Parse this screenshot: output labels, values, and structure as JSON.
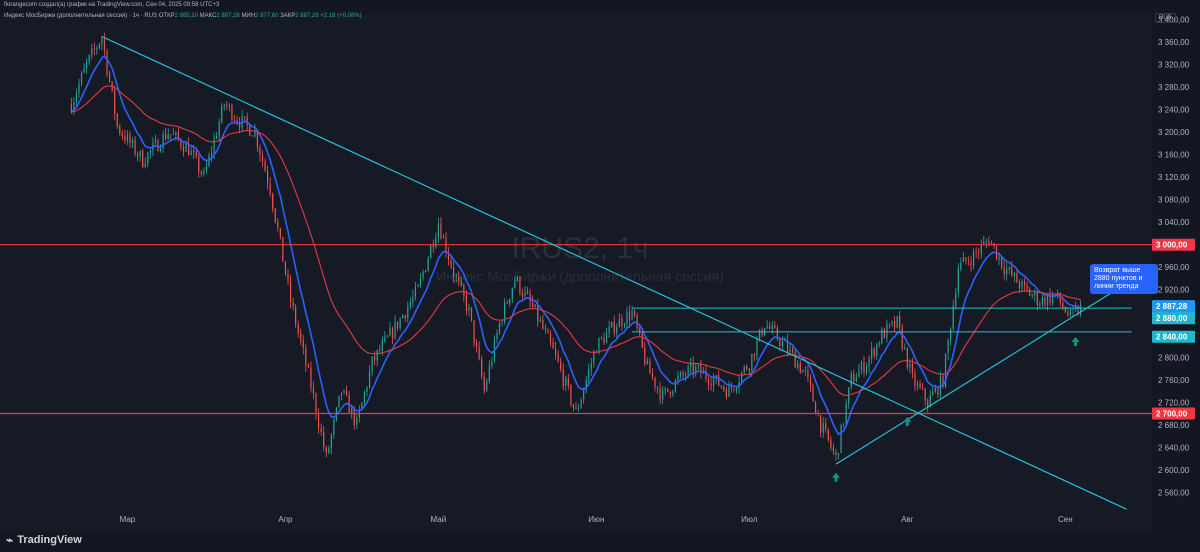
{
  "header": {
    "creator": "florangecom создал(а) график на TradingView.com, Сен 04, 2025 09:58 UTC+3",
    "legend_title": "Индекс МосБиржи (дополнительная сессия) · 1ч · RUS",
    "open_label": "ОТКР",
    "open_value": "2 885,10",
    "high_label": "МАКС",
    "high_value": "2 887,28",
    "low_label": "МИН",
    "low_value": "2 877,60",
    "close_label": "ЗАКР",
    "close_value": "2 887,28",
    "change": "+2,18 (+0,08%)",
    "currency": "RUB"
  },
  "watermark": {
    "symbol": "IRUS2, 1ч",
    "name": "Индекс МосБиржи (дополнительная сессия)"
  },
  "annotation": {
    "text": "Возврат выше 2880 пунктов и линии тренда"
  },
  "footer": {
    "logo_text": "TradingView"
  },
  "colors": {
    "background": "#161a25",
    "up": "#26a69a",
    "down": "#ef5350",
    "ma_fast": "#2962ff",
    "ma_slow": "#e53945",
    "trend": "#22c2d6",
    "level": "#f23645",
    "arrow": "#089981"
  },
  "chart_data": {
    "type": "candlestick",
    "title": "IRUS2, 1ч",
    "ylabel": "RUB",
    "ylim": [
      2525,
      3410
    ],
    "y_ticks": [
      2560,
      2600,
      2640,
      2680,
      2720,
      2760,
      2800,
      2840,
      2880,
      2920,
      2960,
      3000,
      3040,
      3080,
      3120,
      3160,
      3200,
      3240,
      3280,
      3320,
      3360,
      3400
    ],
    "y_tick_labels": [
      "2 560,00",
      "2 600,00",
      "2 640,00",
      "2 680,00",
      "2 720,00",
      "2 760,00",
      "2 800,00",
      "2 840,00",
      "2 880,00",
      "2 920,00",
      "2 960,00",
      "3 000,00",
      "3 040,00",
      "3 080,00",
      "3 120,00",
      "3 160,00",
      "3 200,00",
      "3 240,00",
      "3 280,00",
      "3 320,00",
      "3 360,00",
      "3 400,00"
    ],
    "x_labels": [
      {
        "label": "Мар",
        "date": "2025-03-01"
      },
      {
        "label": "Апр",
        "date": "2025-04-01"
      },
      {
        "label": "Май",
        "date": "2025-05-01"
      },
      {
        "label": "Июн",
        "date": "2025-06-01"
      },
      {
        "label": "Июл",
        "date": "2025-07-01"
      },
      {
        "label": "Авг",
        "date": "2025-08-01"
      },
      {
        "label": "Сен",
        "date": "2025-09-01"
      }
    ],
    "price_path": [
      {
        "date": "2025-02-18",
        "value": 3250
      },
      {
        "date": "2025-02-21",
        "value": 3320
      },
      {
        "date": "2025-02-24",
        "value": 3370
      },
      {
        "date": "2025-02-27",
        "value": 3210
      },
      {
        "date": "2025-03-04",
        "value": 3150
      },
      {
        "date": "2025-03-09",
        "value": 3200
      },
      {
        "date": "2025-03-13",
        "value": 3170
      },
      {
        "date": "2025-03-16",
        "value": 3120
      },
      {
        "date": "2025-03-20",
        "value": 3250
      },
      {
        "date": "2025-03-23",
        "value": 3220
      },
      {
        "date": "2025-03-26",
        "value": 3200
      },
      {
        "date": "2025-03-29",
        "value": 3100
      },
      {
        "date": "2025-04-02",
        "value": 2900
      },
      {
        "date": "2025-04-06",
        "value": 2750
      },
      {
        "date": "2025-04-09",
        "value": 2620
      },
      {
        "date": "2025-04-12",
        "value": 2740
      },
      {
        "date": "2025-04-15",
        "value": 2680
      },
      {
        "date": "2025-04-18",
        "value": 2790
      },
      {
        "date": "2025-04-23",
        "value": 2860
      },
      {
        "date": "2025-04-27",
        "value": 2920
      },
      {
        "date": "2025-05-01",
        "value": 3040
      },
      {
        "date": "2025-05-04",
        "value": 2950
      },
      {
        "date": "2025-05-07",
        "value": 2880
      },
      {
        "date": "2025-05-10",
        "value": 2740
      },
      {
        "date": "2025-05-13",
        "value": 2860
      },
      {
        "date": "2025-05-16",
        "value": 2940
      },
      {
        "date": "2025-05-20",
        "value": 2880
      },
      {
        "date": "2025-05-24",
        "value": 2800
      },
      {
        "date": "2025-05-28",
        "value": 2700
      },
      {
        "date": "2025-06-01",
        "value": 2820
      },
      {
        "date": "2025-06-05",
        "value": 2860
      },
      {
        "date": "2025-06-08",
        "value": 2880
      },
      {
        "date": "2025-06-11",
        "value": 2780
      },
      {
        "date": "2025-06-14",
        "value": 2730
      },
      {
        "date": "2025-06-17",
        "value": 2760
      },
      {
        "date": "2025-06-20",
        "value": 2780
      },
      {
        "date": "2025-06-24",
        "value": 2760
      },
      {
        "date": "2025-06-27",
        "value": 2740
      },
      {
        "date": "2025-07-01",
        "value": 2790
      },
      {
        "date": "2025-07-04",
        "value": 2860
      },
      {
        "date": "2025-07-08",
        "value": 2820
      },
      {
        "date": "2025-07-12",
        "value": 2770
      },
      {
        "date": "2025-07-15",
        "value": 2680
      },
      {
        "date": "2025-07-18",
        "value": 2620
      },
      {
        "date": "2025-07-21",
        "value": 2760
      },
      {
        "date": "2025-07-24",
        "value": 2790
      },
      {
        "date": "2025-07-27",
        "value": 2840
      },
      {
        "date": "2025-07-30",
        "value": 2860
      },
      {
        "date": "2025-08-02",
        "value": 2760
      },
      {
        "date": "2025-08-05",
        "value": 2720
      },
      {
        "date": "2025-08-08",
        "value": 2760
      },
      {
        "date": "2025-08-11",
        "value": 2960
      },
      {
        "date": "2025-08-14",
        "value": 2980
      },
      {
        "date": "2025-08-17",
        "value": 3010
      },
      {
        "date": "2025-08-20",
        "value": 2960
      },
      {
        "date": "2025-08-24",
        "value": 2920
      },
      {
        "date": "2025-08-27",
        "value": 2900
      },
      {
        "date": "2025-08-30",
        "value": 2910
      },
      {
        "date": "2025-09-02",
        "value": 2870
      },
      {
        "date": "2025-09-04",
        "value": 2887
      }
    ],
    "horizontal_levels": [
      {
        "value": 3000,
        "label": "3 000,00"
      },
      {
        "value": 2700,
        "label": "2 700,00"
      }
    ],
    "range_lines": [
      {
        "value": 2887.28,
        "from": "2025-06-08",
        "to": "2025-09-14"
      },
      {
        "value": 2845,
        "from": "2025-06-08",
        "to": "2025-09-14"
      }
    ],
    "trendlines": [
      {
        "from": {
          "date": "2025-02-24",
          "value": 3370
        },
        "to": {
          "date": "2025-09-13",
          "value": 2530
        }
      },
      {
        "from": {
          "date": "2025-07-18",
          "value": 2610
        },
        "to": {
          "date": "2025-09-11",
          "value": 2920
        }
      }
    ],
    "price_labels": [
      {
        "value": 2887.28,
        "label": "2 887,28",
        "sub": "01:47"
      },
      {
        "value": 2880,
        "label": "2 880,00"
      },
      {
        "value": 2840,
        "label": "2 840,00"
      }
    ],
    "signal_arrows": [
      {
        "date": "2025-07-18",
        "value": 2595
      },
      {
        "date": "2025-08-01",
        "value": 2694
      },
      {
        "date": "2025-09-03",
        "value": 2836
      }
    ],
    "grid": false,
    "legend": "top-left"
  }
}
